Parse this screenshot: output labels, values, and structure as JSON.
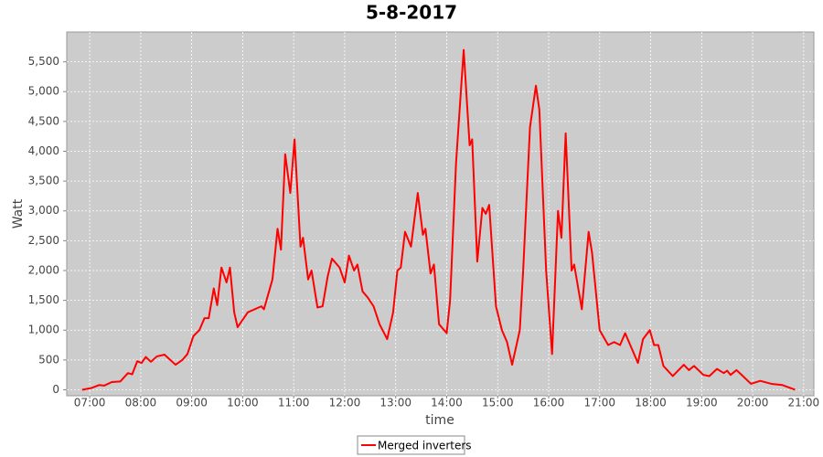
{
  "chart_data": {
    "type": "line",
    "title": "5-8-2017",
    "x_label": "time",
    "y_label": "Watt",
    "x": [
      "06:51",
      "07:02",
      "07:11",
      "07:17",
      "07:26",
      "07:36",
      "07:45",
      "07:50",
      "07:56",
      "08:01",
      "08:06",
      "08:12",
      "08:19",
      "08:28",
      "08:41",
      "08:49",
      "08:55",
      "09:02",
      "09:09",
      "09:15",
      "09:20",
      "09:26",
      "09:30",
      "09:35",
      "09:41",
      "09:45",
      "09:50",
      "09:54",
      "10:06",
      "10:22",
      "10:25",
      "10:32",
      "10:35",
      "10:41",
      "10:45",
      "10:50",
      "10:56",
      "11:01",
      "11:08",
      "11:11",
      "11:17",
      "11:21",
      "11:28",
      "11:34",
      "11:40",
      "11:45",
      "11:54",
      "12:00",
      "12:05",
      "12:11",
      "12:15",
      "12:21",
      "12:27",
      "12:34",
      "12:41",
      "12:50",
      "12:57",
      "13:02",
      "13:06",
      "13:11",
      "13:18",
      "13:26",
      "13:32",
      "13:35",
      "13:41",
      "13:45",
      "13:51",
      "14:00",
      "14:04",
      "14:11",
      "14:20",
      "14:27",
      "14:30",
      "14:36",
      "14:42",
      "14:46",
      "14:50",
      "14:58",
      "15:05",
      "15:11",
      "15:17",
      "15:26",
      "15:30",
      "15:38",
      "15:45",
      "15:49",
      "15:57",
      "16:04",
      "16:11",
      "16:15",
      "16:20",
      "16:27",
      "16:30",
      "16:39",
      "16:47",
      "16:51",
      "17:00",
      "17:10",
      "17:17",
      "17:24",
      "17:30",
      "17:39",
      "17:45",
      "17:51",
      "17:59",
      "18:04",
      "18:09",
      "18:15",
      "18:26",
      "18:39",
      "18:45",
      "18:51",
      "19:02",
      "19:09",
      "19:18",
      "19:26",
      "19:30",
      "19:34",
      "19:41",
      "19:47",
      "19:58",
      "20:09",
      "20:22",
      "20:35",
      "20:50"
    ],
    "series": [
      {
        "name": "Merged inverters",
        "color": "#ff0000",
        "values": [
          0,
          30,
          80,
          70,
          130,
          140,
          280,
          260,
          480,
          450,
          550,
          470,
          560,
          590,
          420,
          500,
          600,
          900,
          1000,
          1200,
          1200,
          1700,
          1420,
          2050,
          1800,
          2050,
          1300,
          1050,
          1300,
          1400,
          1350,
          1700,
          1850,
          2700,
          2350,
          3950,
          3300,
          4200,
          2400,
          2550,
          1850,
          2000,
          1380,
          1400,
          1900,
          2200,
          2050,
          1800,
          2250,
          2000,
          2100,
          1650,
          1550,
          1400,
          1100,
          850,
          1300,
          2000,
          2050,
          2650,
          2400,
          3300,
          2600,
          2700,
          1950,
          2100,
          1100,
          950,
          1500,
          3800,
          5700,
          4100,
          4200,
          2150,
          3050,
          2950,
          3100,
          1400,
          1000,
          800,
          420,
          1000,
          2000,
          4400,
          5100,
          4700,
          2000,
          600,
          3000,
          2550,
          4300,
          2000,
          2100,
          1350,
          2650,
          2300,
          1000,
          750,
          800,
          750,
          950,
          650,
          450,
          850,
          1000,
          750,
          750,
          400,
          230,
          420,
          330,
          400,
          250,
          230,
          350,
          280,
          320,
          250,
          330,
          250,
          100,
          150,
          100,
          80,
          0
        ]
      }
    ],
    "xlim": [
      "06:33",
      "21:12"
    ],
    "xticks": [
      "07:00",
      "08:00",
      "09:00",
      "10:00",
      "11:00",
      "12:00",
      "13:00",
      "14:00",
      "15:00",
      "16:00",
      "17:00",
      "18:00",
      "19:00",
      "20:00",
      "21:00"
    ],
    "ylim": [
      -100,
      6000
    ],
    "yticks": [
      0,
      500,
      {
        "value": 1000,
        "label": "1,000"
      },
      {
        "value": 1500,
        "label": "1,500"
      },
      {
        "value": 2000,
        "label": "2,000"
      },
      {
        "value": 2500,
        "label": "2,500"
      },
      {
        "value": 3000,
        "label": "3,000"
      },
      {
        "value": 3500,
        "label": "3,500"
      },
      {
        "value": 4000,
        "label": "4,000"
      },
      {
        "value": 4500,
        "label": "4,500"
      },
      {
        "value": 5000,
        "label": "5,000"
      },
      {
        "value": 5500,
        "label": "5,500"
      }
    ],
    "grid": true,
    "legend": "bottom"
  }
}
